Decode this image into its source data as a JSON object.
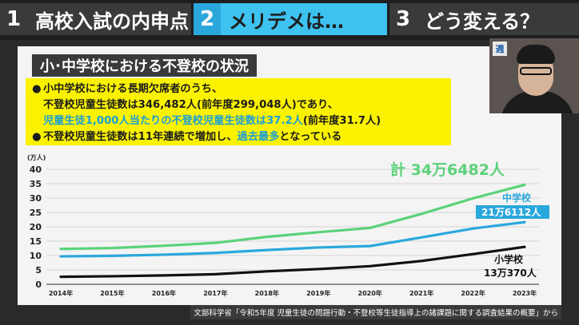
{
  "tabs": [
    {
      "num": "1",
      "label": "高校入試の内申点"
    },
    {
      "num": "2",
      "label": "メリデメは…"
    },
    {
      "num": "3",
      "label": "どう変える？"
    }
  ],
  "panel": {
    "title": "小･中学校における不登校の状況",
    "notes": {
      "bullet": "●",
      "line1": "小中学校における長期欠席者のうち、",
      "line2": "不登校児童生徒数は346,482人(前年度299,048人)であり、",
      "line3_highlight": "児童生徒1,000人当たりの不登校児童生徒数は37.2人",
      "line3_rest": "(前年度31.7人)",
      "line4_a": "不登校児童生徒数は11年連続で増加し、",
      "line4_highlight": "過去最多",
      "line4_b": "となっている"
    }
  },
  "colors": {
    "total": "#5bd27a",
    "middle": "#2aa8dc",
    "elementary": "#111111",
    "highlight_box": "#fbf200"
  },
  "chart_data": {
    "type": "line",
    "ylabel": "(万人)",
    "ylim": [
      0,
      40
    ],
    "yticks": [
      0,
      5,
      10,
      15,
      20,
      25,
      30,
      35,
      40
    ],
    "categories": [
      "2014年",
      "2015年",
      "2016年",
      "2017年",
      "2018年",
      "2019年",
      "2020年",
      "2021年",
      "2022年",
      "2023年"
    ],
    "series": [
      {
        "name": "計",
        "values": [
          12.3,
          12.6,
          13.4,
          14.4,
          16.5,
          18.1,
          19.6,
          24.5,
          29.9,
          34.6
        ]
      },
      {
        "name": "中学校",
        "values": [
          9.7,
          9.9,
          10.3,
          10.9,
          11.9,
          12.8,
          13.3,
          16.3,
          19.4,
          21.6
        ]
      },
      {
        "name": "小学校",
        "values": [
          2.6,
          2.8,
          3.1,
          3.5,
          4.5,
          5.3,
          6.3,
          8.1,
          10.5,
          13.0
        ]
      }
    ],
    "annotations": {
      "total": "計 34万6482人",
      "middle_name": "中学校",
      "middle_value": "21万6112人",
      "elementary_name": "小学校",
      "elementary_value": "13万370人"
    },
    "grid": true
  },
  "source": "文部科学省「令和5年度 児童生徒の問題行動・不登校等生徒指導上の諸課題に関する調査結果の概要」から",
  "presenter": {
    "logo": "週"
  }
}
